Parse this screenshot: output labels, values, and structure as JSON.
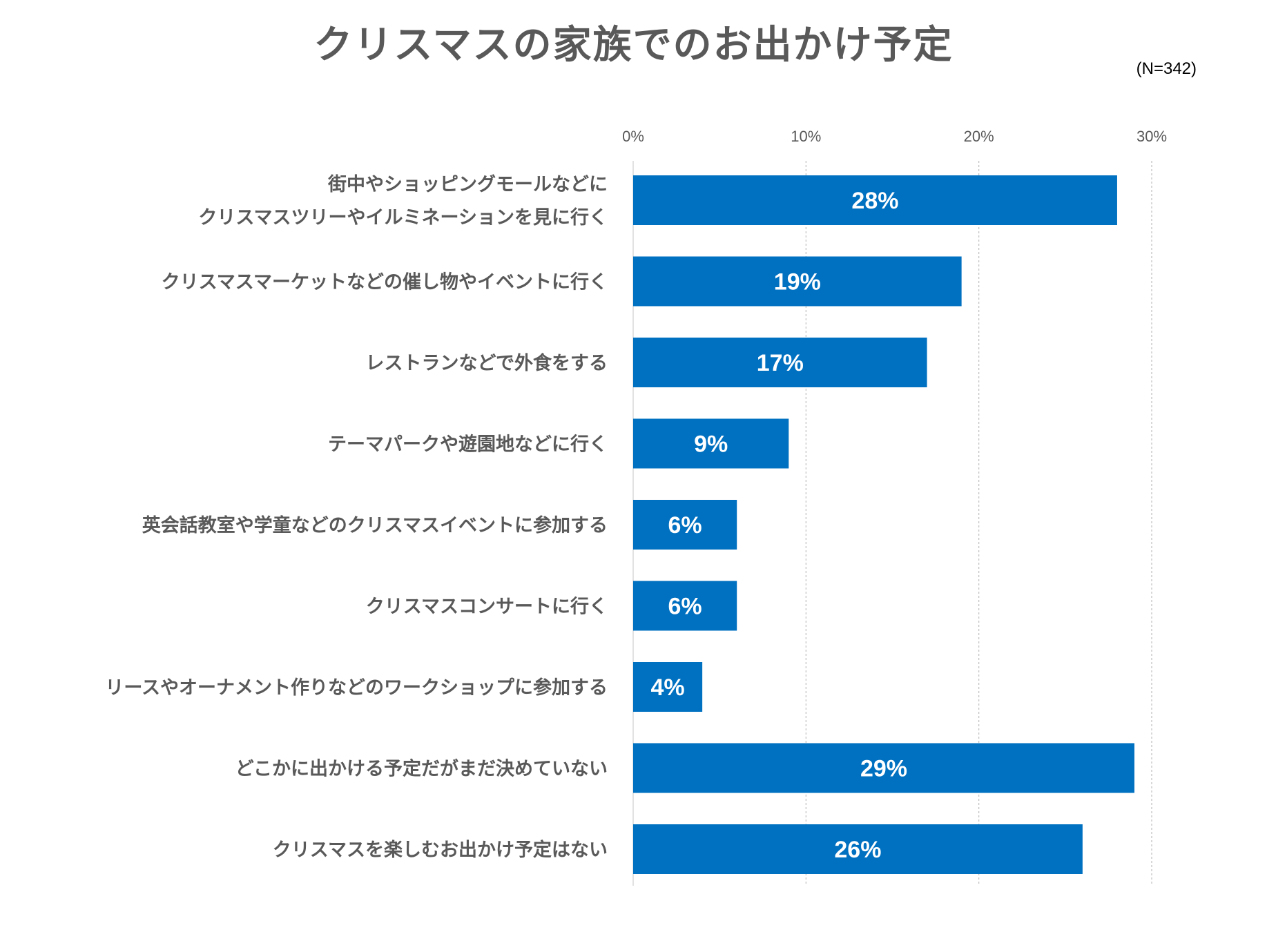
{
  "chart_data": {
    "type": "bar",
    "orientation": "horizontal",
    "title": "クリスマスの家族でのお出かけ予定",
    "note": "(N=342)",
    "xlabel": "",
    "ylabel": "",
    "xlim": [
      0,
      30
    ],
    "ticks": [
      "0%",
      "10%",
      "20%",
      "30%"
    ],
    "tick_values": [
      0,
      10,
      20,
      30
    ],
    "grid": true,
    "bar_color": "#0070C0",
    "categories": [
      [
        "街中やショッピングモールなどに",
        "クリスマスツリーやイルミネーションを見に行く"
      ],
      [
        "クリスマスマーケットなどの催し物やイベントに行く"
      ],
      [
        "レストランなどで外食をする"
      ],
      [
        "テーマパークや遊園地などに行く"
      ],
      [
        "英会話教室や学童などのクリスマスイベントに参加する"
      ],
      [
        "クリスマスコンサートに行く"
      ],
      [
        "リースやオーナメント作りなどのワークショップに参加する"
      ],
      [
        "どこかに出かける予定だがまだ決めていない"
      ],
      [
        "クリスマスを楽しむお出かけ予定はない"
      ]
    ],
    "values": [
      28,
      19,
      17,
      9,
      6,
      6,
      4,
      29,
      26
    ],
    "value_labels": [
      "28%",
      "19%",
      "17%",
      "9%",
      "6%",
      "6%",
      "4%",
      "29%",
      "26%"
    ]
  }
}
